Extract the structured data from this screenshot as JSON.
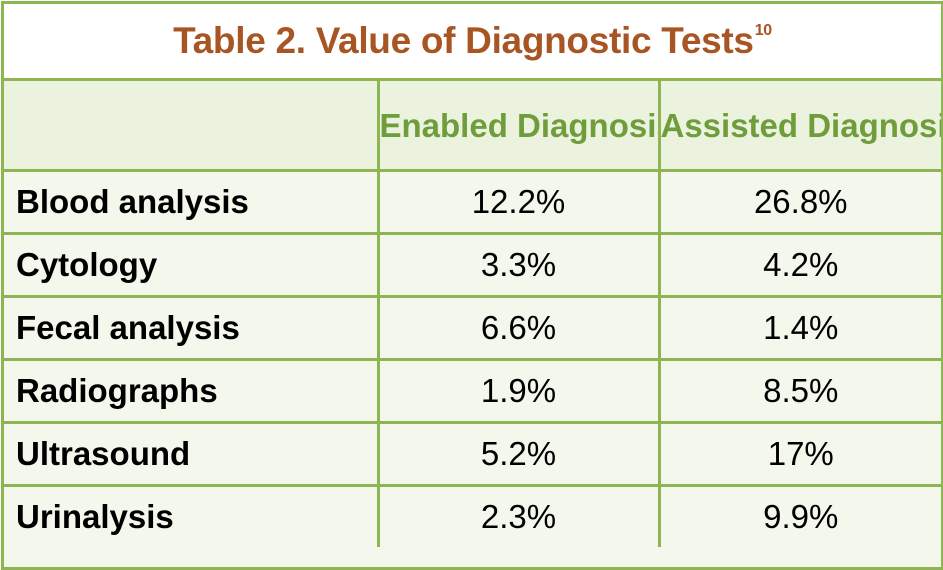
{
  "table": {
    "title": "Table 2. Value of Diagnostic Tests",
    "title_superscript": "10",
    "columns": [
      "",
      "Enabled Diagnosis",
      "Assisted Diagnosis"
    ],
    "rows": [
      {
        "label": "Blood analysis",
        "enabled": "12.2%",
        "assisted": "26.8%"
      },
      {
        "label": "Cytology",
        "enabled": "3.3%",
        "assisted": "4.2%"
      },
      {
        "label": "Fecal analysis",
        "enabled": "6.6%",
        "assisted": "1.4%"
      },
      {
        "label": "Radiographs",
        "enabled": "1.9%",
        "assisted": "8.5%"
      },
      {
        "label": "Ultrasound",
        "enabled": "5.2%",
        "assisted": "17%"
      },
      {
        "label": "Urinalysis",
        "enabled": "2.3%",
        "assisted": "9.9%"
      }
    ]
  },
  "colors": {
    "border": "#8db653",
    "title_text": "#a85524",
    "header_text": "#6f9d3c",
    "table_background": "#f3f7ec",
    "header_background": "#ebf2dd"
  }
}
